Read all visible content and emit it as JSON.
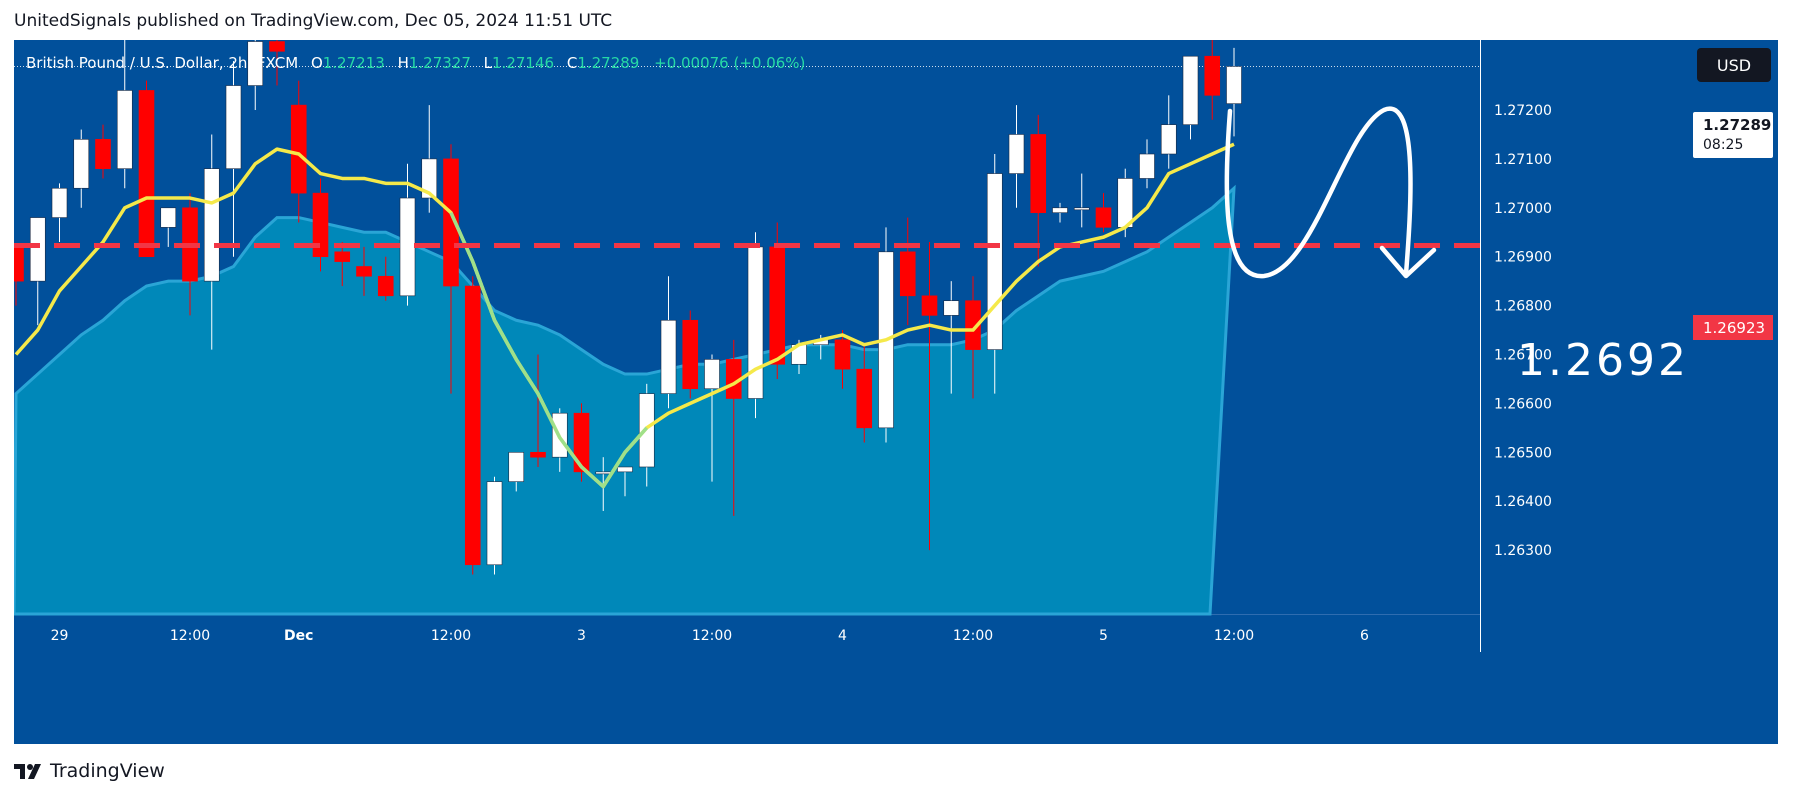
{
  "header": {
    "publisher_line": "UnitedSignals published on TradingView.com, Dec 05, 2024 11:51 UTC"
  },
  "legend": {
    "symbol": "British Pound / U.S. Dollar, 2h, FXCM",
    "open_label": "O",
    "open": "1.27213",
    "high_label": "H",
    "high": "1.27327",
    "low_label": "L",
    "low": "1.27146",
    "close_label": "C",
    "close": "1.27289",
    "change": "+0.00076 (+0.06%)"
  },
  "currency_button": "USD",
  "last_price_tag": {
    "price": "1.27289",
    "countdown": "08:25"
  },
  "level_tag": "1.26923",
  "annotation_text": "1.2692",
  "footer": {
    "brand": "TradingView"
  },
  "colors": {
    "background": "#01509b",
    "area_fill": "#0088b9",
    "up_candle": "#ffffff",
    "down_candle": "#ff0000",
    "ma_line": "#f5e94a",
    "ma_line_segment": "#9fe08a",
    "level_line": "#f23645",
    "legend_value": "#26d9a6"
  },
  "chart_data": {
    "type": "candlestick",
    "title": "",
    "symbol": "British Pound / U.S. Dollar",
    "timeframe": "2h",
    "ylim": [
      1.2625,
      1.2775
    ],
    "y_ticks": [
      1.272,
      1.271,
      1.27,
      1.269,
      1.268,
      1.267,
      1.266,
      1.265,
      1.264,
      1.263
    ],
    "x_ticks": [
      "29",
      "12:00",
      "Dec",
      "12:00",
      "3",
      "12:00",
      "4",
      "12:00",
      "5",
      "12:00",
      "6"
    ],
    "x_tick_candle_index": [
      2,
      8,
      13,
      20,
      26,
      32,
      38,
      44,
      50,
      56,
      62
    ],
    "candles": [
      {
        "o": 1.2692,
        "h": 1.2692,
        "l": 1.268,
        "c": 1.2685
      },
      {
        "o": 1.2685,
        "h": 1.2698,
        "l": 1.2676,
        "c": 1.2698
      },
      {
        "o": 1.2698,
        "h": 1.2705,
        "l": 1.2693,
        "c": 1.2704
      },
      {
        "o": 1.2704,
        "h": 1.2716,
        "l": 1.27,
        "c": 1.2714
      },
      {
        "o": 1.2714,
        "h": 1.2717,
        "l": 1.2706,
        "c": 1.2708
      },
      {
        "o": 1.2708,
        "h": 1.275,
        "l": 1.2704,
        "c": 1.2724
      },
      {
        "o": 1.2724,
        "h": 1.2726,
        "l": 1.269,
        "c": 1.269
      },
      {
        "o": 1.2696,
        "h": 1.27,
        "l": 1.2692,
        "c": 1.27
      },
      {
        "o": 1.27,
        "h": 1.2703,
        "l": 1.2678,
        "c": 1.2685
      },
      {
        "o": 1.2685,
        "h": 1.2715,
        "l": 1.2671,
        "c": 1.2708
      },
      {
        "o": 1.2708,
        "h": 1.273,
        "l": 1.269,
        "c": 1.2725
      },
      {
        "o": 1.2725,
        "h": 1.2739,
        "l": 1.272,
        "c": 1.2734
      },
      {
        "o": 1.2734,
        "h": 1.2742,
        "l": 1.2725,
        "c": 1.2732
      },
      {
        "o": 1.2721,
        "h": 1.2726,
        "l": 1.2697,
        "c": 1.2703
      },
      {
        "o": 1.2703,
        "h": 1.2706,
        "l": 1.2687,
        "c": 1.269
      },
      {
        "o": 1.2691,
        "h": 1.2693,
        "l": 1.2684,
        "c": 1.2689
      },
      {
        "o": 1.2688,
        "h": 1.2692,
        "l": 1.2682,
        "c": 1.2686
      },
      {
        "o": 1.2686,
        "h": 1.269,
        "l": 1.2681,
        "c": 1.2682
      },
      {
        "o": 1.2682,
        "h": 1.2709,
        "l": 1.268,
        "c": 1.2702
      },
      {
        "o": 1.2702,
        "h": 1.2721,
        "l": 1.2699,
        "c": 1.271
      },
      {
        "o": 1.271,
        "h": 1.2713,
        "l": 1.2662,
        "c": 1.2684
      },
      {
        "o": 1.2684,
        "h": 1.2686,
        "l": 1.2625,
        "c": 1.2627
      },
      {
        "o": 1.2627,
        "h": 1.2645,
        "l": 1.2625,
        "c": 1.2644
      },
      {
        "o": 1.2644,
        "h": 1.265,
        "l": 1.2642,
        "c": 1.265
      },
      {
        "o": 1.265,
        "h": 1.267,
        "l": 1.2647,
        "c": 1.2649
      },
      {
        "o": 1.2649,
        "h": 1.2659,
        "l": 1.2646,
        "c": 1.2658
      },
      {
        "o": 1.2658,
        "h": 1.266,
        "l": 1.2644,
        "c": 1.2646
      },
      {
        "o": 1.2646,
        "h": 1.2649,
        "l": 1.2638,
        "c": 1.2646
      },
      {
        "o": 1.2646,
        "h": 1.2647,
        "l": 1.2641,
        "c": 1.2647
      },
      {
        "o": 1.2647,
        "h": 1.2664,
        "l": 1.2643,
        "c": 1.2662
      },
      {
        "o": 1.2662,
        "h": 1.2686,
        "l": 1.2659,
        "c": 1.2677
      },
      {
        "o": 1.2677,
        "h": 1.2679,
        "l": 1.2661,
        "c": 1.2663
      },
      {
        "o": 1.2663,
        "h": 1.267,
        "l": 1.2644,
        "c": 1.2669
      },
      {
        "o": 1.2669,
        "h": 1.2673,
        "l": 1.2637,
        "c": 1.2661
      },
      {
        "o": 1.2661,
        "h": 1.2695,
        "l": 1.2657,
        "c": 1.2692
      },
      {
        "o": 1.2692,
        "h": 1.2697,
        "l": 1.2665,
        "c": 1.2668
      },
      {
        "o": 1.2668,
        "h": 1.2673,
        "l": 1.2666,
        "c": 1.2672
      },
      {
        "o": 1.2672,
        "h": 1.2674,
        "l": 1.2669,
        "c": 1.2673
      },
      {
        "o": 1.2673,
        "h": 1.2675,
        "l": 1.2663,
        "c": 1.2667
      },
      {
        "o": 1.2667,
        "h": 1.2672,
        "l": 1.2652,
        "c": 1.2655
      },
      {
        "o": 1.2655,
        "h": 1.2696,
        "l": 1.2652,
        "c": 1.2691
      },
      {
        "o": 1.2691,
        "h": 1.2698,
        "l": 1.2676,
        "c": 1.2682
      },
      {
        "o": 1.2682,
        "h": 1.2693,
        "l": 1.263,
        "c": 1.2678
      },
      {
        "o": 1.2678,
        "h": 1.2685,
        "l": 1.2662,
        "c": 1.2681
      },
      {
        "o": 1.2681,
        "h": 1.2686,
        "l": 1.2661,
        "c": 1.2671
      },
      {
        "o": 1.2671,
        "h": 1.2711,
        "l": 1.2662,
        "c": 1.2707
      },
      {
        "o": 1.2707,
        "h": 1.2721,
        "l": 1.27,
        "c": 1.2715
      },
      {
        "o": 1.2715,
        "h": 1.2719,
        "l": 1.2688,
        "c": 1.2699
      },
      {
        "o": 1.2699,
        "h": 1.2701,
        "l": 1.2697,
        "c": 1.27
      },
      {
        "o": 1.27,
        "h": 1.2707,
        "l": 1.2696,
        "c": 1.27
      },
      {
        "o": 1.27,
        "h": 1.2703,
        "l": 1.2695,
        "c": 1.2696
      },
      {
        "o": 1.2696,
        "h": 1.2708,
        "l": 1.2694,
        "c": 1.2706
      },
      {
        "o": 1.2706,
        "h": 1.2714,
        "l": 1.2704,
        "c": 1.2711
      },
      {
        "o": 1.2711,
        "h": 1.2723,
        "l": 1.2708,
        "c": 1.2717
      },
      {
        "o": 1.2717,
        "h": 1.2731,
        "l": 1.2714,
        "c": 1.2731
      },
      {
        "o": 1.2731,
        "h": 1.2738,
        "l": 1.2718,
        "c": 1.2723
      },
      {
        "o": 1.27213,
        "h": 1.27327,
        "l": 1.27146,
        "c": 1.27289
      }
    ],
    "ma_series": [
      1.267,
      1.2675,
      1.2683,
      1.2688,
      1.2693,
      1.27,
      1.2702,
      1.2702,
      1.2702,
      1.2701,
      1.2703,
      1.2709,
      1.2712,
      1.2711,
      1.2707,
      1.2706,
      1.2706,
      1.2705,
      1.2705,
      1.2703,
      1.2699,
      1.2689,
      1.2677,
      1.2669,
      1.2662,
      1.2653,
      1.2647,
      1.2643,
      1.265,
      1.2655,
      1.2658,
      1.266,
      1.2662,
      1.2664,
      1.2667,
      1.2669,
      1.2672,
      1.2673,
      1.2674,
      1.2672,
      1.2673,
      1.2675,
      1.2676,
      1.2675,
      1.2675,
      1.268,
      1.2685,
      1.2689,
      1.2692,
      1.2693,
      1.2694,
      1.2696,
      1.27,
      1.2707,
      1.2709,
      1.2711,
      1.2713
    ],
    "area_series": [
      1.2662,
      1.2666,
      1.267,
      1.2674,
      1.2677,
      1.2681,
      1.2684,
      1.2685,
      1.2685,
      1.2686,
      1.2688,
      1.2694,
      1.2698,
      1.2698,
      1.2697,
      1.2696,
      1.2695,
      1.2695,
      1.2693,
      1.2691,
      1.2689,
      1.2684,
      1.2679,
      1.2677,
      1.2676,
      1.2674,
      1.2671,
      1.2668,
      1.2666,
      1.2666,
      1.2667,
      1.2668,
      1.2668,
      1.2669,
      1.267,
      1.2671,
      1.2672,
      1.2672,
      1.2672,
      1.2671,
      1.2671,
      1.2672,
      1.2672,
      1.2672,
      1.2673,
      1.2675,
      1.2679,
      1.2682,
      1.2685,
      1.2686,
      1.2687,
      1.2689,
      1.2691,
      1.2694,
      1.2697,
      1.27,
      1.2704
    ],
    "horizontal_level": 1.26923,
    "last_price": 1.27289
  }
}
